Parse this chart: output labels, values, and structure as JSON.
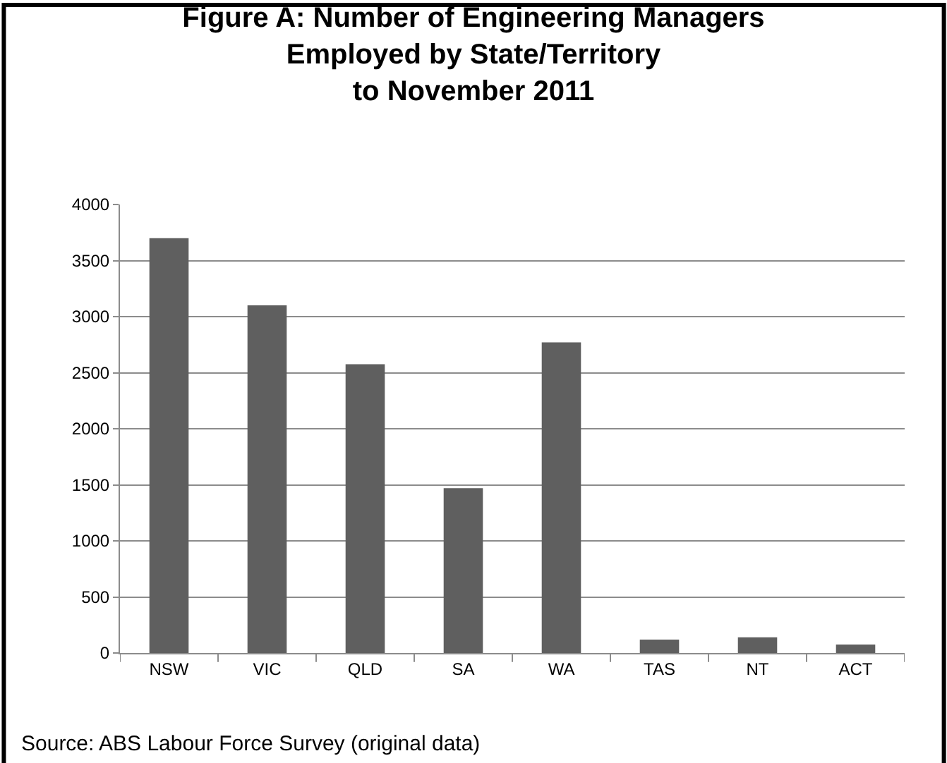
{
  "chart_data": {
    "type": "bar",
    "title": "Figure A: Number of Engineering Managers\nEmployed by State/Territory\nto November 2011",
    "categories": [
      "NSW",
      "VIC",
      "QLD",
      "SA",
      "WA",
      "TAS",
      "NT",
      "ACT"
    ],
    "values": [
      3700,
      3100,
      2575,
      1470,
      2770,
      120,
      140,
      75
    ],
    "color": "#5f5f5f",
    "ylim": [
      0,
      4000
    ],
    "yticks": [
      0,
      500,
      1000,
      1500,
      2000,
      2500,
      3000,
      3500,
      4000
    ],
    "grid": "y",
    "legend": false,
    "annotations": [
      "Source: ABS Labour Force Survey (original data)"
    ]
  }
}
